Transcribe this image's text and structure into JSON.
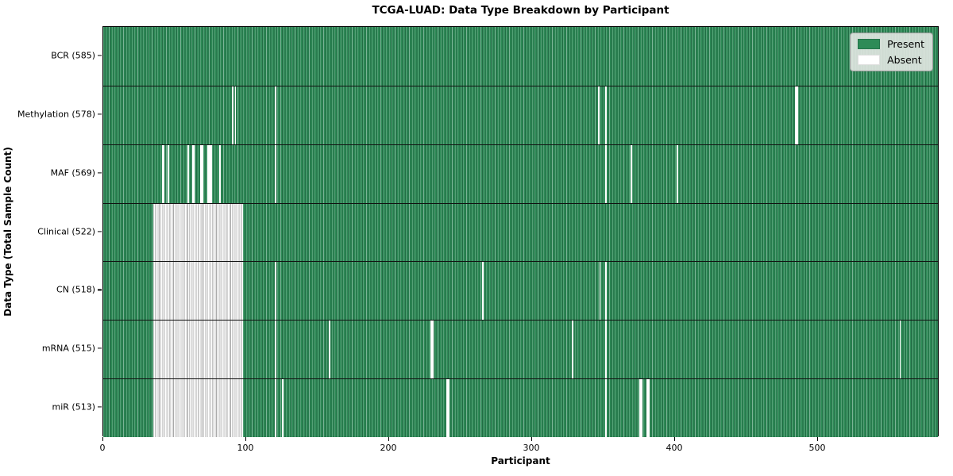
{
  "chart_data": {
    "type": "heatmap",
    "title": "TCGA-LUAD: Data Type Breakdown by Participant",
    "xlabel": "Participant",
    "ylabel": "Data Type (Total Sample Count)",
    "x_ticks": [
      0,
      100,
      200,
      300,
      400,
      500
    ],
    "x_range": [
      0,
      585
    ],
    "n_participants": 585,
    "grid": false,
    "legend_position": "upper right",
    "colors": {
      "present": "#2e8b57",
      "absent": "#ffffff"
    },
    "legend": [
      {
        "label": "Present",
        "color": "#2e8b57"
      },
      {
        "label": "Absent",
        "color": "#ffffff"
      }
    ],
    "rows": [
      {
        "label": "BCR (585)",
        "data_type": "BCR",
        "present_count": 585,
        "absent_ranges": []
      },
      {
        "label": "Methylation (578)",
        "data_type": "Methylation",
        "present_count": 578,
        "absent_ranges": [
          [
            90,
            90
          ],
          [
            92,
            92
          ],
          [
            120,
            120
          ],
          [
            346,
            346
          ],
          [
            351,
            351
          ],
          [
            484,
            485
          ]
        ]
      },
      {
        "label": "MAF (569)",
        "data_type": "MAF",
        "present_count": 569,
        "absent_ranges": [
          [
            41,
            42
          ],
          [
            45,
            45
          ],
          [
            59,
            59
          ],
          [
            62,
            63
          ],
          [
            68,
            69
          ],
          [
            73,
            75
          ],
          [
            81,
            81
          ],
          [
            120,
            120
          ],
          [
            351,
            351
          ],
          [
            369,
            369
          ],
          [
            401,
            401
          ]
        ]
      },
      {
        "label": "Clinical (522)",
        "data_type": "Clinical",
        "present_count": 522,
        "absent_ranges": [
          [
            35,
            97
          ]
        ]
      },
      {
        "label": "CN (518)",
        "data_type": "CN",
        "present_count": 518,
        "absent_ranges": [
          [
            35,
            97
          ],
          [
            120,
            120
          ],
          [
            265,
            265
          ],
          [
            347,
            347
          ],
          [
            351,
            351
          ]
        ]
      },
      {
        "label": "mRNA (515)",
        "data_type": "mRNA",
        "present_count": 515,
        "absent_ranges": [
          [
            35,
            97
          ],
          [
            120,
            120
          ],
          [
            158,
            158
          ],
          [
            229,
            230
          ],
          [
            328,
            328
          ],
          [
            351,
            351
          ],
          [
            557,
            557
          ]
        ]
      },
      {
        "label": "miR (513)",
        "data_type": "miR",
        "present_count": 513,
        "absent_ranges": [
          [
            35,
            97
          ],
          [
            120,
            120
          ],
          [
            125,
            125
          ],
          [
            240,
            241
          ],
          [
            351,
            351
          ],
          [
            375,
            376
          ],
          [
            380,
            381
          ]
        ]
      }
    ]
  }
}
